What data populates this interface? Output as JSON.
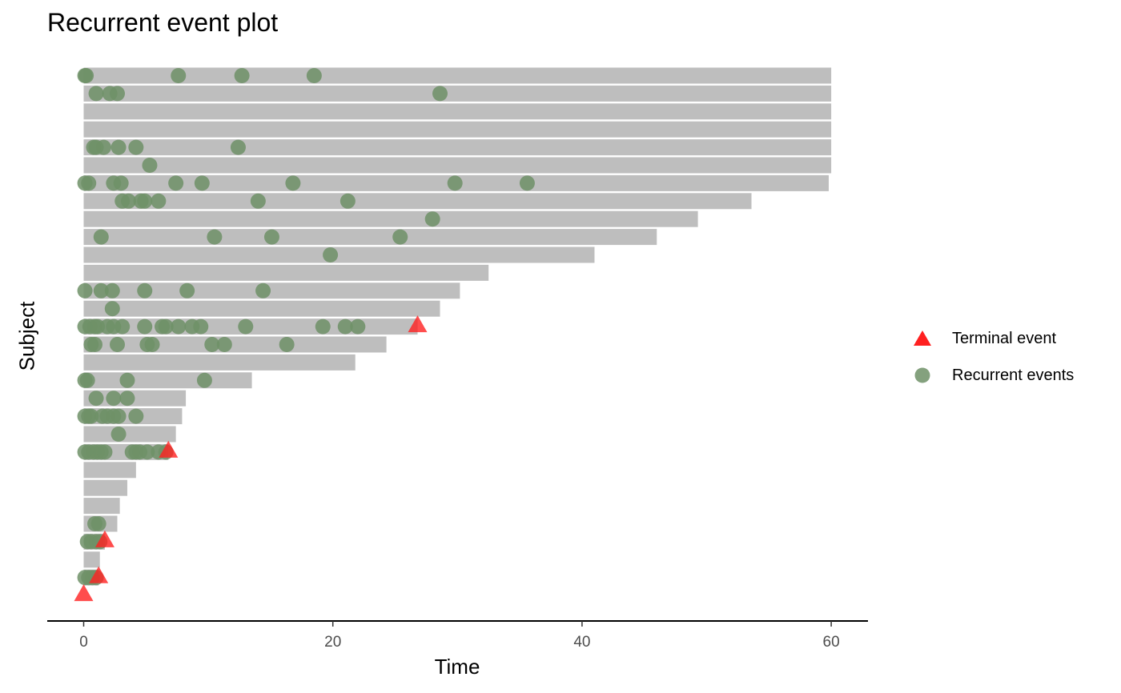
{
  "chart_data": {
    "type": "scatter",
    "title": "Recurrent event plot",
    "xlabel": "Time",
    "ylabel": "Subject",
    "xlim": [
      -3,
      63
    ],
    "x_ticks": [
      0,
      20,
      40,
      60
    ],
    "grid": false,
    "legend_position": "right",
    "colors": {
      "bar": "#bebebe",
      "recurrent": "#6e9167",
      "terminal": "#ff2020"
    },
    "series": [
      {
        "name": "Terminal event",
        "marker": "triangle"
      },
      {
        "name": "Recurrent events",
        "marker": "circle"
      }
    ],
    "subjects": [
      {
        "end": 60,
        "events": [
          0.1,
          0.2,
          7.6,
          12.7,
          18.5
        ],
        "terminal": null
      },
      {
        "end": 60,
        "events": [
          1.0,
          2.1,
          2.7,
          28.6
        ],
        "terminal": null
      },
      {
        "end": 60,
        "events": [],
        "terminal": null
      },
      {
        "end": 60,
        "events": [],
        "terminal": null
      },
      {
        "end": 60,
        "events": [
          0.8,
          1.0,
          1.6,
          2.8,
          4.2,
          12.4
        ],
        "terminal": null
      },
      {
        "end": 60,
        "events": [
          5.3
        ],
        "terminal": null
      },
      {
        "end": 59.8,
        "events": [
          0.1,
          0.4,
          2.4,
          3.0,
          7.4,
          9.5,
          16.8,
          29.8,
          35.6
        ],
        "terminal": null
      },
      {
        "end": 53.6,
        "events": [
          3.1,
          3.6,
          4.6,
          4.9,
          6.0,
          14.0,
          21.2
        ],
        "terminal": null
      },
      {
        "end": 49.3,
        "events": [
          28.0
        ],
        "terminal": null
      },
      {
        "end": 46.0,
        "events": [
          1.4,
          10.5,
          15.1,
          25.4
        ],
        "terminal": null
      },
      {
        "end": 41.0,
        "events": [
          19.8
        ],
        "terminal": null
      },
      {
        "end": 32.5,
        "events": [],
        "terminal": null
      },
      {
        "end": 30.2,
        "events": [
          0.1,
          1.4,
          2.3,
          4.9,
          8.3,
          14.4
        ],
        "terminal": null
      },
      {
        "end": 28.6,
        "events": [
          2.3
        ],
        "terminal": null
      },
      {
        "end": 26.8,
        "events": [
          0.1,
          0.5,
          0.9,
          1.1,
          1.9,
          2.4,
          3.1,
          4.9,
          6.3,
          6.6,
          7.6,
          8.7,
          9.4,
          13.0,
          19.2,
          21.0,
          22.0
        ],
        "terminal": 26.8
      },
      {
        "end": 24.3,
        "events": [
          0.6,
          0.9,
          2.7,
          5.1,
          5.5,
          10.3,
          11.3,
          16.3
        ],
        "terminal": null
      },
      {
        "end": 21.8,
        "events": [],
        "terminal": null
      },
      {
        "end": 13.5,
        "events": [
          0.1,
          0.3,
          3.5,
          9.7
        ],
        "terminal": null
      },
      {
        "end": 8.2,
        "events": [
          1.0,
          2.4,
          3.5
        ],
        "terminal": null
      },
      {
        "end": 7.9,
        "events": [
          0.1,
          0.4,
          0.6,
          1.5,
          1.9,
          2.4,
          2.8,
          4.2
        ],
        "terminal": null
      },
      {
        "end": 7.4,
        "events": [
          2.8
        ],
        "terminal": null
      },
      {
        "end": 6.8,
        "events": [
          0.1,
          0.4,
          0.8,
          1.1,
          1.4,
          1.7,
          3.9,
          4.2,
          4.5,
          5.1,
          6.0,
          6.6
        ],
        "terminal": 6.8
      },
      {
        "end": 4.2,
        "events": [],
        "terminal": null
      },
      {
        "end": 3.5,
        "events": [],
        "terminal": null
      },
      {
        "end": 2.9,
        "events": [],
        "terminal": null
      },
      {
        "end": 2.7,
        "events": [
          0.9,
          1.2
        ],
        "terminal": null
      },
      {
        "end": 1.7,
        "events": [
          0.3,
          0.6,
          1.0,
          1.3
        ],
        "terminal": 1.7
      },
      {
        "end": 1.3,
        "events": [],
        "terminal": null
      },
      {
        "end": 1.2,
        "events": [
          0.1,
          0.4,
          0.7,
          1.0
        ],
        "terminal": 1.2
      },
      {
        "end": 0.0,
        "events": [],
        "terminal": 0.0
      }
    ]
  }
}
